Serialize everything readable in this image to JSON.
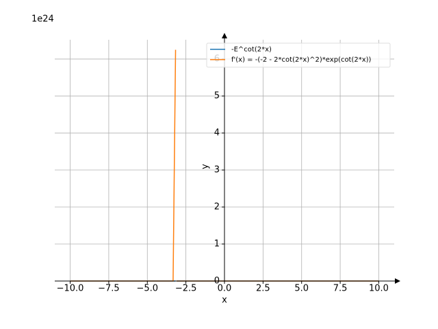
{
  "chart_data": {
    "type": "line",
    "x_label": "x",
    "y_label": "y",
    "y_offset_label": "1e24",
    "x": [
      -10,
      -5,
      -3.33,
      -3.17,
      -3.14,
      -3.1,
      0,
      5,
      10
    ],
    "series": [
      {
        "name": "-E^cot(2*x)",
        "color": "#1f77b4",
        "values": [
          0,
          0,
          0,
          0,
          null,
          0,
          0,
          0,
          0
        ]
      },
      {
        "name": "f'(x) = -(-2 - 2*cot(2*x)^2)*exp(cot(2*x))",
        "color": "#ff7f0e",
        "values": [
          0,
          0,
          0,
          6.25,
          null,
          0,
          0,
          0,
          0
        ]
      }
    ],
    "xlim": [
      -11,
      11
    ],
    "ylim": [
      0,
      6.52
    ],
    "xticks": [
      {
        "value": -10,
        "label": "−10.0"
      },
      {
        "value": -7.5,
        "label": "−7.5"
      },
      {
        "value": -5,
        "label": "−5.0"
      },
      {
        "value": -2.5,
        "label": "−2.5"
      },
      {
        "value": 0,
        "label": "0.0"
      },
      {
        "value": 2.5,
        "label": "2.5"
      },
      {
        "value": 5,
        "label": "5.0"
      },
      {
        "value": 7.5,
        "label": "7.5"
      },
      {
        "value": 10,
        "label": "10.0"
      }
    ],
    "yticks": [
      0,
      1,
      2,
      3,
      4,
      5,
      6
    ],
    "grid": true,
    "legend": "upper right"
  }
}
